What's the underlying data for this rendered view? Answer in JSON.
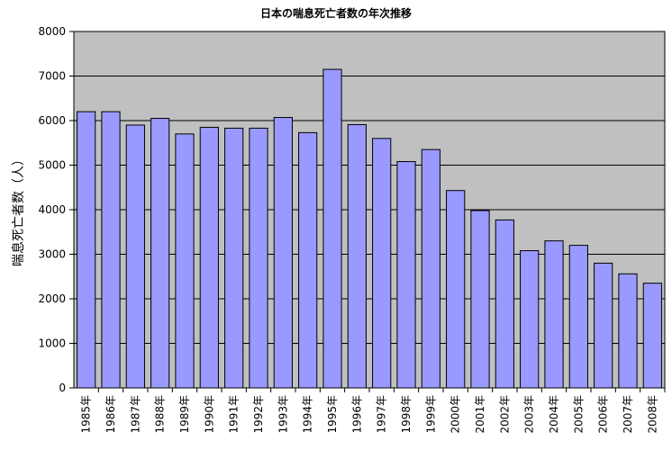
{
  "chart_data": {
    "type": "bar",
    "title": "日本の喘息死亡者数の年次推移",
    "xlabel": "",
    "ylabel": "喘息死亡者数（人）",
    "ylim": [
      0,
      8000
    ],
    "yticks": [
      0,
      1000,
      2000,
      3000,
      4000,
      5000,
      6000,
      7000,
      8000
    ],
    "grid": true,
    "legend": "none",
    "categories": [
      "1985年",
      "1986年",
      "1987年",
      "1988年",
      "1989年",
      "1990年",
      "1991年",
      "1992年",
      "1993年",
      "1994年",
      "1995年",
      "1996年",
      "1997年",
      "1998年",
      "1999年",
      "2000年",
      "2001年",
      "2002年",
      "2003年",
      "2004年",
      "2005年",
      "2006年",
      "2007年",
      "2008年"
    ],
    "values": [
      6200,
      6200,
      5900,
      6050,
      5700,
      5850,
      5830,
      5830,
      6070,
      5730,
      7150,
      5910,
      5600,
      5080,
      5350,
      4430,
      3980,
      3770,
      3080,
      3300,
      3200,
      2800,
      2560,
      2350
    ]
  },
  "colors": {
    "plot_background": "#c0c0c0",
    "bar_fill": "#9999ff",
    "bar_stroke": "#000000",
    "grid": "#000000"
  }
}
